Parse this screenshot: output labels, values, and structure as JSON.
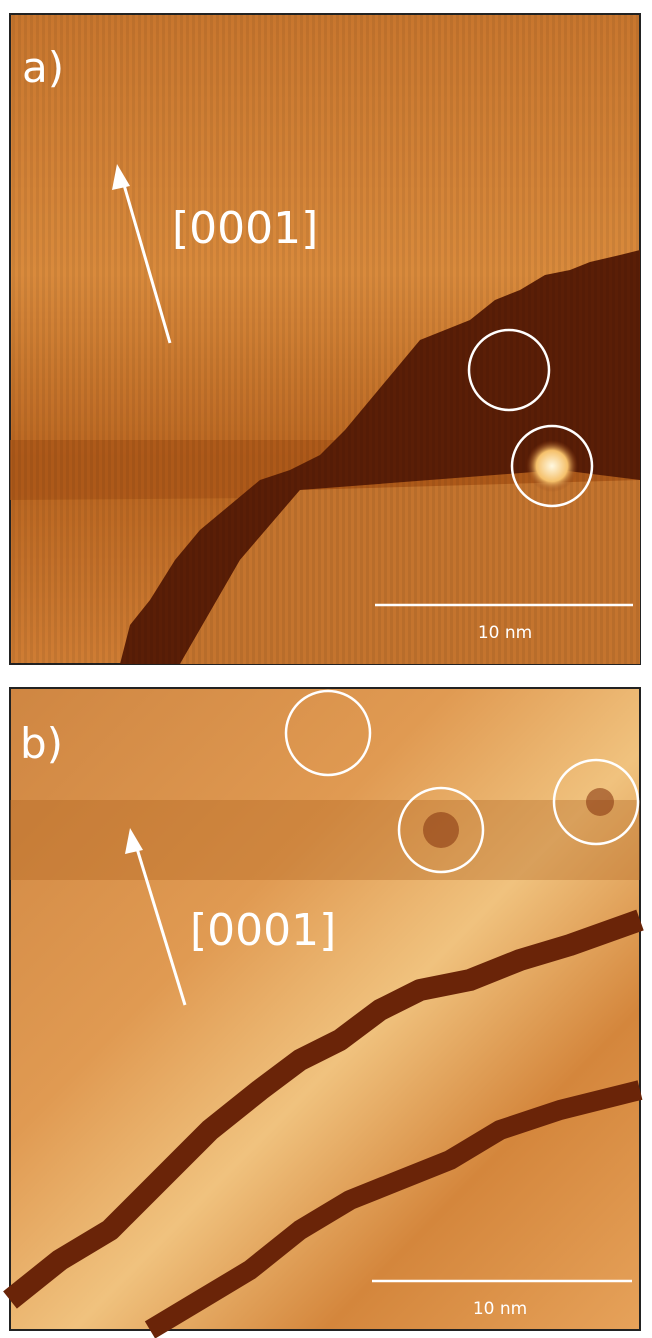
{
  "panels": [
    {
      "label": "a)",
      "direction": "[0001]",
      "scale_bar": "10 nm"
    },
    {
      "label": "b)",
      "direction": "[0001]",
      "scale_bar": "10 nm"
    }
  ]
}
